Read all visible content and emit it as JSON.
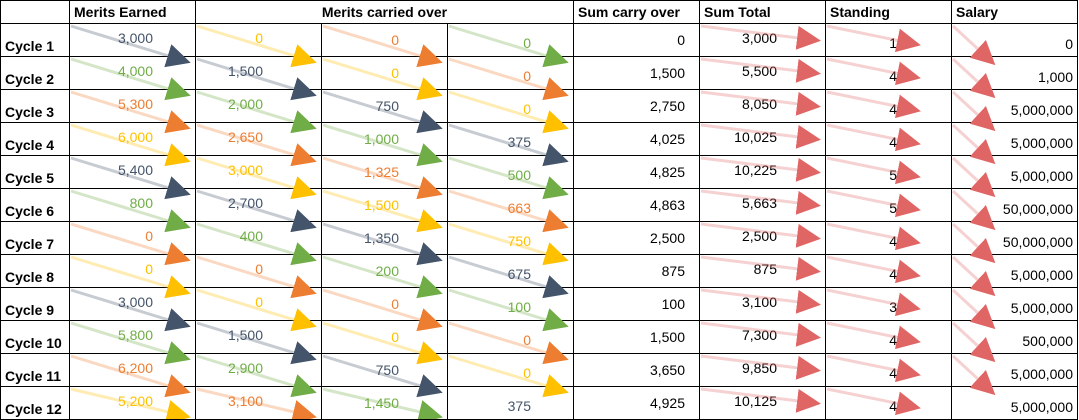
{
  "headers": [
    "",
    "Merits Earned",
    "Merits carried over",
    "Sum carry over",
    "Sum Total",
    "Standing",
    "Salary"
  ],
  "colors": {
    "blue": "#44546A",
    "green": "#70AD47",
    "orange": "#ED7D31",
    "yellow": "#FFC000",
    "red_arrow": "#E06666"
  },
  "rows": [
    {
      "label": "Cycle 1",
      "earned": {
        "v": "3,000",
        "c": "blue"
      },
      "m1": {
        "v": "0",
        "c": "yellow"
      },
      "m2": {
        "v": "0",
        "c": "orange"
      },
      "m3": {
        "v": "0",
        "c": "green"
      },
      "sum_carry": "0",
      "sum_total": "3,000",
      "standing": "1",
      "salary": "0"
    },
    {
      "label": "Cycle 2",
      "earned": {
        "v": "4,000",
        "c": "green"
      },
      "m1": {
        "v": "1,500",
        "c": "blue"
      },
      "m2": {
        "v": "0",
        "c": "yellow"
      },
      "m3": {
        "v": "0",
        "c": "orange"
      },
      "sum_carry": "1,500",
      "sum_total": "5,500",
      "standing": "4",
      "salary": "1,000"
    },
    {
      "label": "Cycle 3",
      "earned": {
        "v": "5,300",
        "c": "orange"
      },
      "m1": {
        "v": "2,000",
        "c": "green"
      },
      "m2": {
        "v": "750",
        "c": "blue"
      },
      "m3": {
        "v": "0",
        "c": "yellow"
      },
      "sum_carry": "2,750",
      "sum_total": "8,050",
      "standing": "4",
      "salary": "5,000,000"
    },
    {
      "label": "Cycle 4",
      "earned": {
        "v": "6,000",
        "c": "yellow"
      },
      "m1": {
        "v": "2,650",
        "c": "orange"
      },
      "m2": {
        "v": "1,000",
        "c": "green"
      },
      "m3": {
        "v": "375",
        "c": "blue"
      },
      "sum_carry": "4,025",
      "sum_total": "10,025",
      "standing": "4",
      "salary": "5,000,000"
    },
    {
      "label": "Cycle 5",
      "earned": {
        "v": "5,400",
        "c": "blue"
      },
      "m1": {
        "v": "3,000",
        "c": "yellow"
      },
      "m2": {
        "v": "1,325",
        "c": "orange"
      },
      "m3": {
        "v": "500",
        "c": "green"
      },
      "sum_carry": "4,825",
      "sum_total": "10,225",
      "standing": "5",
      "salary": "5,000,000"
    },
    {
      "label": "Cycle 6",
      "earned": {
        "v": "800",
        "c": "green"
      },
      "m1": {
        "v": "2,700",
        "c": "blue"
      },
      "m2": {
        "v": "1,500",
        "c": "yellow"
      },
      "m3": {
        "v": "663",
        "c": "orange"
      },
      "sum_carry": "4,863",
      "sum_total": "5,663",
      "standing": "5",
      "salary": "50,000,000"
    },
    {
      "label": "Cycle 7",
      "earned": {
        "v": "0",
        "c": "orange"
      },
      "m1": {
        "v": "400",
        "c": "green"
      },
      "m2": {
        "v": "1,350",
        "c": "blue"
      },
      "m3": {
        "v": "750",
        "c": "yellow"
      },
      "sum_carry": "2,500",
      "sum_total": "2,500",
      "standing": "4",
      "salary": "50,000,000"
    },
    {
      "label": "Cycle 8",
      "earned": {
        "v": "0",
        "c": "yellow"
      },
      "m1": {
        "v": "0",
        "c": "orange"
      },
      "m2": {
        "v": "200",
        "c": "green"
      },
      "m3": {
        "v": "675",
        "c": "blue"
      },
      "sum_carry": "875",
      "sum_total": "875",
      "standing": "4",
      "salary": "5,000,000"
    },
    {
      "label": "Cycle 9",
      "earned": {
        "v": "3,000",
        "c": "blue"
      },
      "m1": {
        "v": "0",
        "c": "yellow"
      },
      "m2": {
        "v": "0",
        "c": "orange"
      },
      "m3": {
        "v": "100",
        "c": "green"
      },
      "sum_carry": "100",
      "sum_total": "3,100",
      "standing": "3",
      "salary": "5,000,000"
    },
    {
      "label": "Cycle 10",
      "earned": {
        "v": "5,800",
        "c": "green"
      },
      "m1": {
        "v": "1,500",
        "c": "blue"
      },
      "m2": {
        "v": "0",
        "c": "yellow"
      },
      "m3": {
        "v": "0",
        "c": "orange"
      },
      "sum_carry": "1,500",
      "sum_total": "7,300",
      "standing": "4",
      "salary": "500,000"
    },
    {
      "label": "Cycle 11",
      "earned": {
        "v": "6,200",
        "c": "orange"
      },
      "m1": {
        "v": "2,900",
        "c": "green"
      },
      "m2": {
        "v": "750",
        "c": "blue"
      },
      "m3": {
        "v": "0",
        "c": "yellow"
      },
      "sum_carry": "3,650",
      "sum_total": "9,850",
      "standing": "4",
      "salary": "5,000,000"
    },
    {
      "label": "Cycle 12",
      "earned": {
        "v": "5,200",
        "c": "yellow"
      },
      "m1": {
        "v": "3,100",
        "c": "orange"
      },
      "m2": {
        "v": "1,450",
        "c": "green"
      },
      "m3": {
        "v": "375",
        "c": "blue"
      },
      "sum_carry": "4,925",
      "sum_total": "10,125",
      "standing": "4",
      "salary": "5,000,000"
    }
  ]
}
